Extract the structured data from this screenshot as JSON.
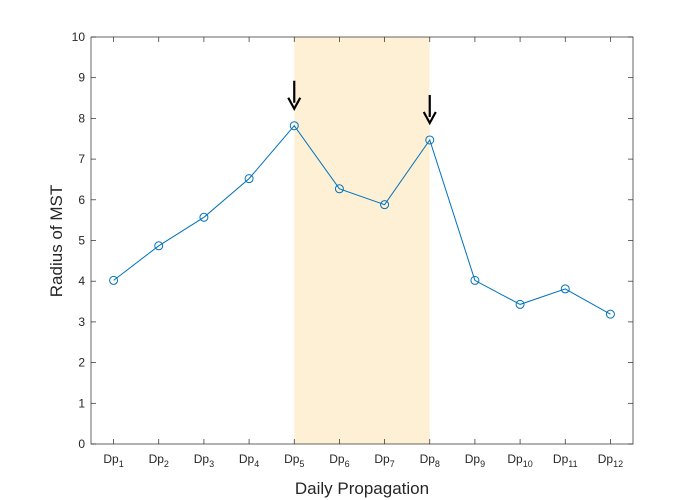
{
  "chart_data": {
    "type": "line",
    "xlabel": "Daily Propagation",
    "ylabel": "Radius of MST",
    "categories": [
      {
        "base": "Dp",
        "sub": "1"
      },
      {
        "base": "Dp",
        "sub": "2"
      },
      {
        "base": "Dp",
        "sub": "3"
      },
      {
        "base": "Dp",
        "sub": "4"
      },
      {
        "base": "Dp",
        "sub": "5"
      },
      {
        "base": "Dp",
        "sub": "6"
      },
      {
        "base": "Dp",
        "sub": "7"
      },
      {
        "base": "Dp",
        "sub": "8"
      },
      {
        "base": "Dp",
        "sub": "9"
      },
      {
        "base": "Dp",
        "sub": "10"
      },
      {
        "base": "Dp",
        "sub": "11"
      },
      {
        "base": "Dp",
        "sub": "12"
      }
    ],
    "series": [
      {
        "values": [
          4.02,
          4.87,
          5.57,
          6.52,
          7.82,
          6.27,
          5.88,
          7.47,
          4.02,
          3.43,
          3.81,
          3.19
        ]
      }
    ],
    "ylim": [
      0,
      10
    ],
    "yticks": [
      "0",
      "1",
      "2",
      "3",
      "4",
      "5",
      "6",
      "7",
      "8",
      "9",
      "10"
    ],
    "highlight_region": {
      "from_index": 4,
      "to_index": 7,
      "color": "#fdf0d5"
    },
    "arrows_at_index": [
      4,
      7
    ],
    "line_color": "#0072bd",
    "grid": false,
    "marker": "open-circle"
  }
}
